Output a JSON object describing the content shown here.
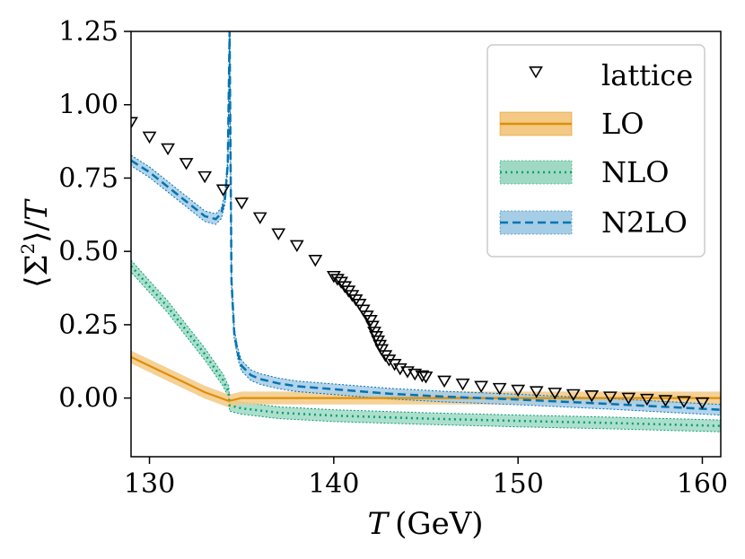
{
  "chart_data": {
    "type": "line",
    "xlabel_italic": "T",
    "xlabel_unit": "(GeV)",
    "ylabel_open": "⟨Σ",
    "ylabel_sup": "2",
    "ylabel_close": "⟩/",
    "ylabel_italic": "T",
    "xlim": [
      129,
      161
    ],
    "ylim": [
      -0.2,
      1.25
    ],
    "xticks": [
      130,
      140,
      150,
      160
    ],
    "xtick_labels": [
      "130",
      "140",
      "150",
      "160"
    ],
    "yticks": [
      0.0,
      0.25,
      0.5,
      0.75,
      1.0,
      1.25
    ],
    "ytick_labels": [
      "0.00",
      "0.25",
      "0.50",
      "0.75",
      "1.00",
      "1.25"
    ],
    "legend_position": "top-right",
    "colors": {
      "lattice": "#000000",
      "LO": "#de8f05",
      "LO_band": "#f3c985",
      "NLO": "#029e73",
      "NLO_band": "#9fd9c4",
      "N2LO": "#0173b2",
      "N2LO_band": "#a6cde6"
    },
    "series": [
      {
        "name": "lattice",
        "style": "markers",
        "x": [
          129,
          130,
          131,
          132,
          133,
          134,
          135,
          136,
          137,
          138,
          139,
          140,
          140.2,
          140.4,
          140.6,
          140.8,
          141,
          141.2,
          141.4,
          141.6,
          141.8,
          142,
          142.1,
          142.2,
          142.3,
          142.4,
          142.5,
          142.6,
          142.8,
          143,
          143.3,
          143.6,
          144,
          144.4,
          144.8,
          145,
          146,
          147,
          148,
          149,
          150,
          151,
          152,
          153,
          154,
          155,
          156,
          157,
          158,
          159,
          160
        ],
        "y": [
          0.94,
          0.89,
          0.85,
          0.8,
          0.755,
          0.71,
          0.665,
          0.615,
          0.56,
          0.52,
          0.47,
          0.415,
          0.405,
          0.395,
          0.38,
          0.365,
          0.35,
          0.335,
          0.32,
          0.3,
          0.28,
          0.265,
          0.245,
          0.225,
          0.21,
          0.195,
          0.18,
          0.165,
          0.145,
          0.13,
          0.115,
          0.1,
          0.09,
          0.082,
          0.076,
          0.072,
          0.058,
          0.048,
          0.04,
          0.033,
          0.027,
          0.022,
          0.017,
          0.012,
          0.008,
          0.004,
          0.0,
          -0.004,
          -0.008,
          -0.012,
          -0.016
        ]
      },
      {
        "name": "LO",
        "style": "solid",
        "x": [
          129,
          130,
          131,
          132,
          133,
          134.3,
          135,
          140,
          145,
          150,
          155,
          161
        ],
        "y": [
          0.14,
          0.11,
          0.08,
          0.05,
          0.02,
          -0.01,
          0.0,
          0.0,
          0.0,
          0.0,
          0.0,
          0.0
        ],
        "band": 0.022
      },
      {
        "name": "NLO",
        "style": "dotted",
        "x": [
          129,
          130,
          131,
          132,
          133,
          134,
          134.3,
          134.35,
          135,
          137,
          140,
          145,
          150,
          155,
          161
        ],
        "y": [
          0.45,
          0.38,
          0.31,
          0.23,
          0.15,
          0.06,
          0.02,
          -0.025,
          -0.035,
          -0.05,
          -0.06,
          -0.07,
          -0.078,
          -0.085,
          -0.095
        ],
        "band": 0.02
      },
      {
        "name": "N2LO",
        "style": "dashed",
        "x": [
          129,
          130,
          131,
          132,
          133,
          133.6,
          133.9,
          134.1,
          134.25,
          134.35,
          134.45,
          134.6,
          134.8,
          135,
          135.5,
          136,
          137,
          138,
          140,
          143,
          146,
          150,
          155,
          161
        ],
        "y": [
          0.81,
          0.77,
          0.72,
          0.67,
          0.62,
          0.61,
          0.63,
          0.68,
          0.8,
          1.25,
          0.4,
          0.22,
          0.15,
          0.11,
          0.078,
          0.065,
          0.05,
          0.04,
          0.03,
          0.015,
          0.005,
          -0.005,
          -0.02,
          -0.04
        ],
        "band": 0.018
      }
    ],
    "legend": [
      "lattice",
      "LO",
      "NLO",
      "N2LO"
    ]
  }
}
